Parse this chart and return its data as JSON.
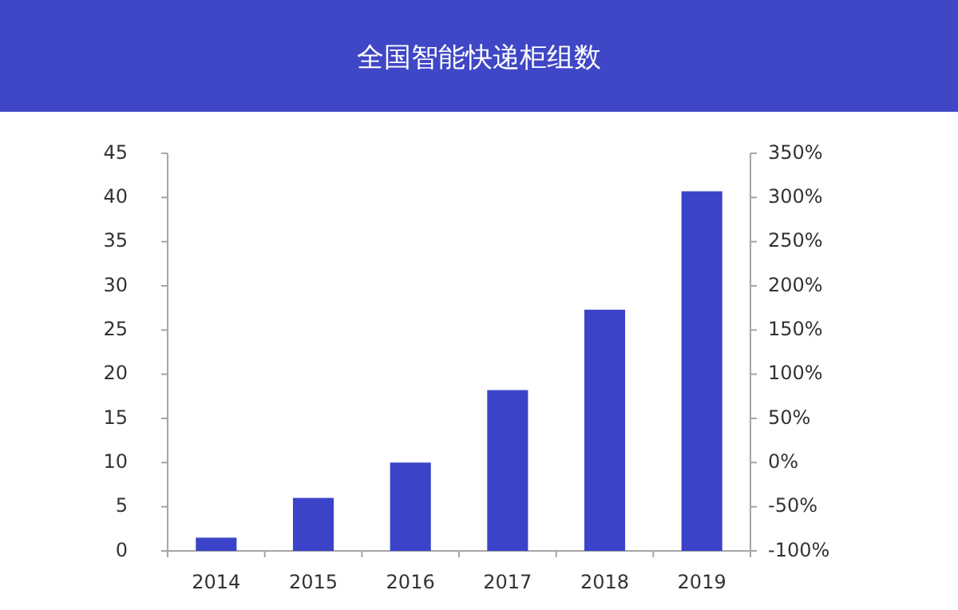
{
  "chart_data": {
    "type": "bar",
    "title": "全国智能快递柜组数",
    "categories": [
      "2014",
      "2015",
      "2016",
      "2017",
      "2018",
      "2019"
    ],
    "values": [
      1.5,
      6,
      10,
      18.2,
      27.3,
      40.7
    ],
    "color": "#3b44c8",
    "ylim": [
      0,
      45
    ],
    "yticks": [
      0,
      5,
      10,
      15,
      20,
      25,
      30,
      35,
      40,
      45
    ],
    "y2lim": [
      -100,
      350
    ],
    "y2ticks": [
      {
        "value": -100,
        "label": "-100%"
      },
      {
        "value": -50,
        "label": "-50%"
      },
      {
        "value": 0,
        "label": "0%"
      },
      {
        "value": 50,
        "label": "50%"
      },
      {
        "value": 100,
        "label": "100%"
      },
      {
        "value": 150,
        "label": "150%"
      },
      {
        "value": 200,
        "label": "200%"
      },
      {
        "value": 250,
        "label": "250%"
      },
      {
        "value": 300,
        "label": "300%"
      },
      {
        "value": 350,
        "label": "350%"
      }
    ],
    "grid": false
  }
}
